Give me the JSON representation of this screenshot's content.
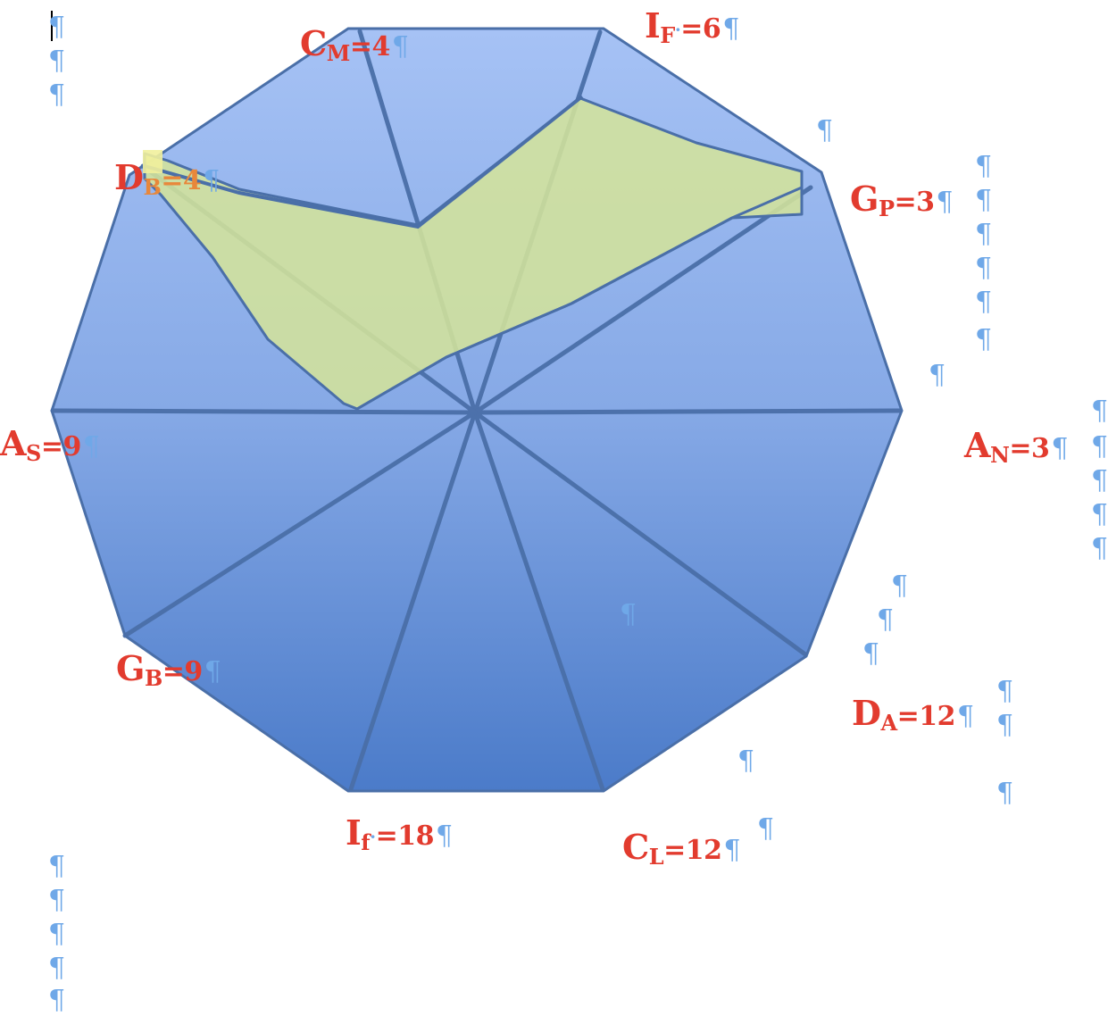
{
  "colors": {
    "polygon_top": "#a3bff3",
    "polygon_bottom": "#4e7ecb",
    "stroke": "#4a6fa8",
    "highlight_fill": "#d2e29a",
    "label": "#e23b2e",
    "pilcrow": "#6fa8e8"
  },
  "pilcrow": "¶",
  "labels": {
    "cm": {
      "base": "C",
      "sub": "M",
      "val": "=4"
    },
    "if_top": {
      "base": "I",
      "sub": "F",
      "val": "=6"
    },
    "gp": {
      "base": "G",
      "sub": "P",
      "val": "=3"
    },
    "db": {
      "base": "D",
      "sub": "B",
      "val": "=4"
    },
    "as": {
      "base": "A",
      "sub": "S",
      "val": "=9"
    },
    "an": {
      "base": "A",
      "sub": "N",
      "val": "=3"
    },
    "gb": {
      "base": "G",
      "sub": "B",
      "val": "=9"
    },
    "da": {
      "base": "D",
      "sub": "A",
      "val": "=12"
    },
    "if_bottom": {
      "base": "I",
      "sub": "f",
      "val": "=18"
    },
    "cl": {
      "base": "C",
      "sub": "L",
      "val": "=12"
    }
  }
}
